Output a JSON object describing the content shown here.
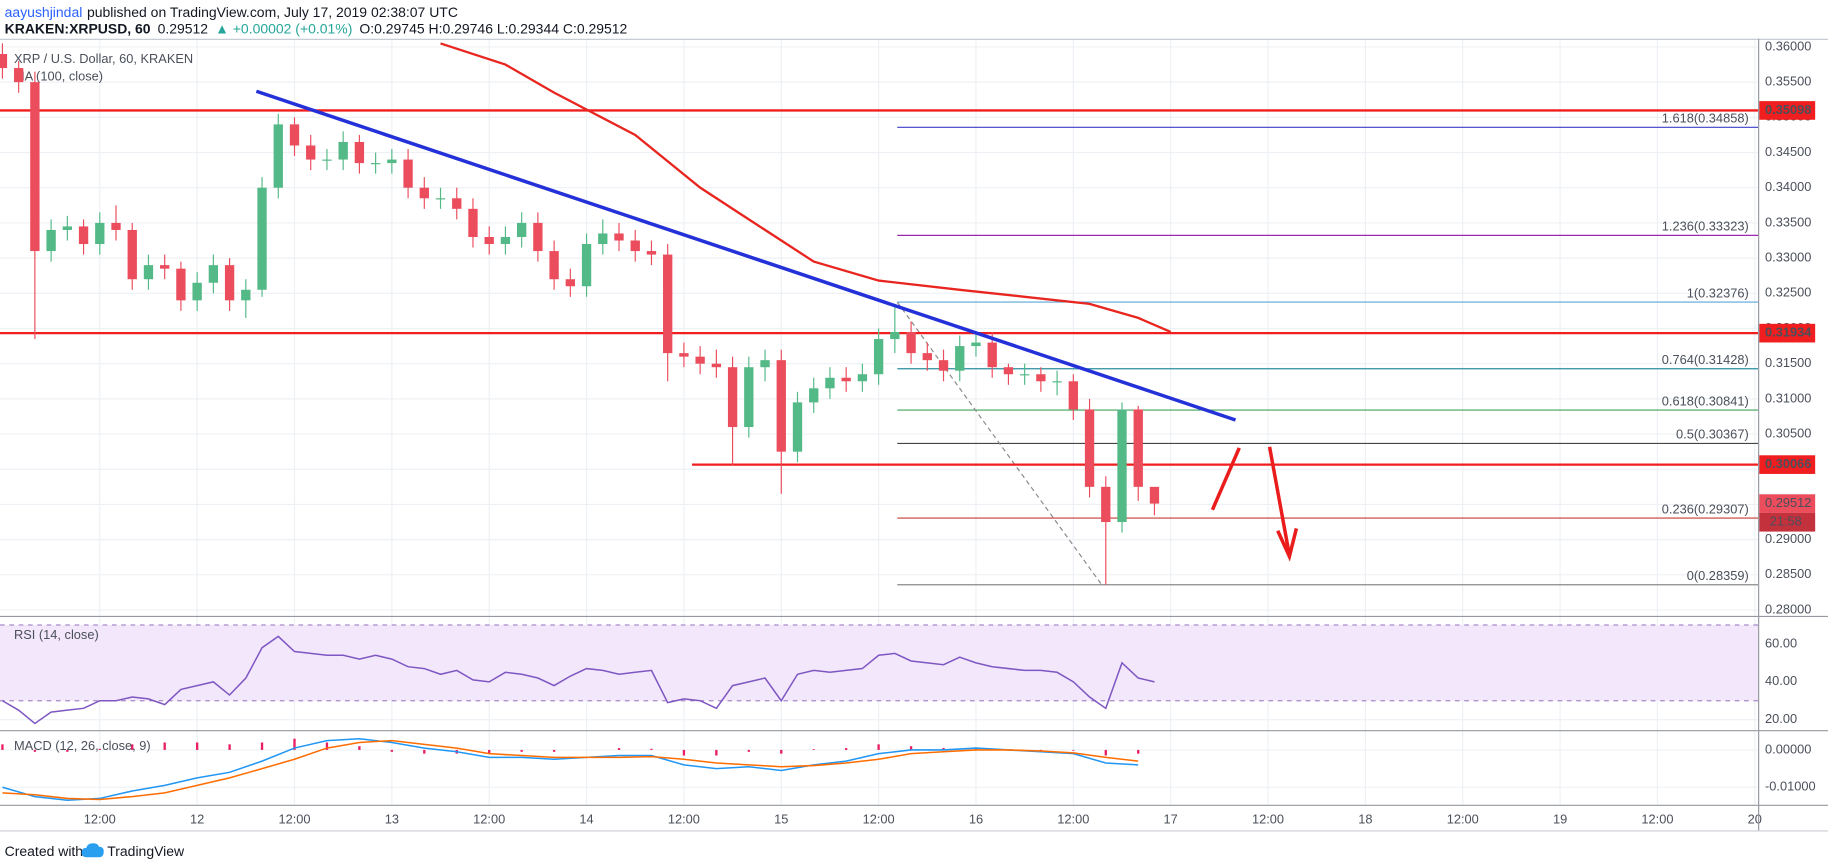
{
  "header": {
    "author": "aayushjindal",
    "published": "published on TradingView.com, July 17, 2019 02:38:07 UTC"
  },
  "symbol_bar": {
    "symbol": "KRAKEN:XRPUSD, 60",
    "last": "0.29512",
    "change": "▲ +0.00002 (+0.01%)",
    "ohlc": "O:0.29745 H:0.29746 L:0.29344 C:0.29512"
  },
  "chart_data": [
    {
      "type": "candlestick",
      "title": "XRP / U.S. Dollar, 60, KRAKEN",
      "x": [
        0,
        2,
        4,
        6,
        8,
        10,
        12,
        14,
        16,
        18,
        20,
        22,
        24,
        26,
        28,
        30,
        32,
        34,
        36,
        38,
        40,
        42,
        44,
        46,
        48,
        50,
        52,
        54,
        56,
        58,
        60,
        62,
        64,
        66,
        68,
        70,
        72,
        74,
        76,
        78,
        80,
        82,
        84,
        86,
        88,
        90,
        92,
        94,
        96,
        98,
        100,
        102,
        104,
        106,
        108,
        110,
        112,
        114,
        116,
        118,
        120,
        122,
        124,
        126,
        128,
        130,
        132,
        134,
        136,
        138,
        140,
        142
      ],
      "open": [
        0.359,
        0.357,
        0.355,
        0.331,
        0.334,
        0.3345,
        0.332,
        0.335,
        0.334,
        0.327,
        0.329,
        0.3285,
        0.324,
        0.3265,
        0.329,
        0.324,
        0.3255,
        0.34,
        0.349,
        0.346,
        0.344,
        0.344,
        0.3465,
        0.3435,
        0.3435,
        0.344,
        0.34,
        0.3385,
        0.3385,
        0.337,
        0.333,
        0.332,
        0.333,
        0.335,
        0.331,
        0.327,
        0.326,
        0.332,
        0.3335,
        0.3325,
        0.331,
        0.3305,
        0.3165,
        0.316,
        0.315,
        0.3145,
        0.306,
        0.3145,
        0.3155,
        0.3025,
        0.3095,
        0.3115,
        0.313,
        0.3125,
        0.3135,
        0.3185,
        0.3195,
        0.3165,
        0.3155,
        0.314,
        0.3175,
        0.318,
        0.3145,
        0.3135,
        0.3135,
        0.3125,
        0.3125,
        0.3085,
        0.2975,
        0.2925,
        0.3085,
        0.2975
      ],
      "high": [
        0.3605,
        0.358,
        0.3565,
        0.3355,
        0.336,
        0.3355,
        0.3365,
        0.3375,
        0.335,
        0.3305,
        0.3305,
        0.3295,
        0.328,
        0.3305,
        0.33,
        0.327,
        0.3415,
        0.3505,
        0.35,
        0.3475,
        0.3455,
        0.348,
        0.3475,
        0.345,
        0.3455,
        0.3455,
        0.3415,
        0.34,
        0.34,
        0.3385,
        0.3345,
        0.3345,
        0.3365,
        0.3365,
        0.3325,
        0.3285,
        0.3335,
        0.3355,
        0.335,
        0.334,
        0.3325,
        0.332,
        0.318,
        0.3175,
        0.317,
        0.316,
        0.316,
        0.317,
        0.317,
        0.311,
        0.313,
        0.3145,
        0.3145,
        0.315,
        0.32,
        0.3235,
        0.321,
        0.318,
        0.317,
        0.319,
        0.3195,
        0.3195,
        0.315,
        0.315,
        0.3145,
        0.314,
        0.3135,
        0.31,
        0.299,
        0.3095,
        0.309,
        0.29746
      ],
      "low": [
        0.3555,
        0.3535,
        0.3185,
        0.3295,
        0.3325,
        0.3305,
        0.3305,
        0.3325,
        0.3255,
        0.3255,
        0.327,
        0.3225,
        0.3225,
        0.325,
        0.3225,
        0.3215,
        0.3245,
        0.3385,
        0.3445,
        0.3425,
        0.3425,
        0.3425,
        0.342,
        0.342,
        0.342,
        0.3385,
        0.337,
        0.337,
        0.3355,
        0.3315,
        0.3305,
        0.3305,
        0.3315,
        0.3295,
        0.3255,
        0.3245,
        0.3245,
        0.3305,
        0.331,
        0.3295,
        0.329,
        0.3125,
        0.3145,
        0.3135,
        0.313,
        0.3005,
        0.3045,
        0.3125,
        0.2965,
        0.301,
        0.308,
        0.31,
        0.311,
        0.311,
        0.312,
        0.3165,
        0.315,
        0.314,
        0.3125,
        0.3125,
        0.316,
        0.313,
        0.312,
        0.312,
        0.311,
        0.3105,
        0.307,
        0.296,
        0.2836,
        0.291,
        0.2955,
        0.29344
      ],
      "close": [
        0.357,
        0.355,
        0.331,
        0.334,
        0.3345,
        0.332,
        0.335,
        0.334,
        0.327,
        0.329,
        0.3285,
        0.324,
        0.3265,
        0.329,
        0.324,
        0.3255,
        0.34,
        0.349,
        0.346,
        0.344,
        0.344,
        0.3465,
        0.3435,
        0.3435,
        0.344,
        0.34,
        0.3385,
        0.3385,
        0.337,
        0.333,
        0.332,
        0.333,
        0.335,
        0.331,
        0.327,
        0.326,
        0.332,
        0.3335,
        0.3325,
        0.331,
        0.3305,
        0.3165,
        0.316,
        0.315,
        0.3145,
        0.306,
        0.3145,
        0.3155,
        0.3025,
        0.3095,
        0.3115,
        0.313,
        0.3125,
        0.3135,
        0.3185,
        0.3195,
        0.3165,
        0.3155,
        0.314,
        0.3175,
        0.318,
        0.3145,
        0.3135,
        0.3135,
        0.3125,
        0.3125,
        0.3085,
        0.2975,
        0.2925,
        0.3085,
        0.2975,
        0.29512
      ],
      "up_color": "#53b987",
      "down_color": "#eb4d5c",
      "xlim": [
        -0.3,
        216.4
      ],
      "ylim": [
        0.27917,
        0.36116
      ],
      "yticks": [
        {
          "value": 0.28,
          "label": "0.28000"
        },
        {
          "value": 0.285,
          "label": "0.28500"
        },
        {
          "value": 0.29,
          "label": "0.29000"
        },
        {
          "value": 0.295,
          "label": "0.29500"
        },
        {
          "value": 0.3,
          "label": "0.30000"
        },
        {
          "value": 0.305,
          "label": "0.30500"
        },
        {
          "value": 0.31,
          "label": "0.31000"
        },
        {
          "value": 0.315,
          "label": "0.31500"
        },
        {
          "value": 0.32,
          "label": "0.32000"
        },
        {
          "value": 0.325,
          "label": "0.32500"
        },
        {
          "value": 0.33,
          "label": "0.33000"
        },
        {
          "value": 0.335,
          "label": "0.33500"
        },
        {
          "value": 0.34,
          "label": "0.34000"
        },
        {
          "value": 0.345,
          "label": "0.34500"
        },
        {
          "value": 0.35,
          "label": "0.35000"
        },
        {
          "value": 0.355,
          "label": "0.35500"
        },
        {
          "value": 0.36,
          "label": "0.36000"
        }
      ],
      "grid": true,
      "overlays": [
        {
          "name": "MA (100, close)",
          "color": "#e8261f",
          "x": [
            54,
            62,
            68,
            78,
            86,
            92,
            100,
            108,
            118,
            126,
            134,
            140,
            144
          ],
          "values": [
            0.3605,
            0.3575,
            0.3535,
            0.3475,
            0.34,
            0.3355,
            0.3295,
            0.3268,
            0.3255,
            0.3245,
            0.3235,
            0.3215,
            0.3195
          ]
        },
        {
          "color": "#2431d8",
          "x": [
            31.3,
            152
          ],
          "values": [
            0.3537,
            0.307
          ]
        }
      ],
      "levels": [
        {
          "value": 0.35098
        },
        {
          "value": 0.31934
        },
        {
          "value": 0.30066,
          "x_start": 85
        }
      ],
      "level_color": "#f01e1e",
      "fib": {
        "x_start": 110.3,
        "x_end": 135.5,
        "levels": [
          {
            "ratio": 1.618,
            "value": 0.34858,
            "label": "1.618(0.34858)",
            "color": "#3b3fc8"
          },
          {
            "ratio": 1.236,
            "value": 0.33323,
            "label": "1.236(0.33323)",
            "color": "#9c27b0"
          },
          {
            "ratio": 1,
            "value": 0.32376,
            "label": "1(0.32376)",
            "color": "#5aa7d8"
          },
          {
            "ratio": 0.764,
            "value": 0.31428,
            "label": "0.764(0.31428)",
            "color": "#2a8e9e"
          },
          {
            "ratio": 0.618,
            "value": 0.30841,
            "label": "0.618(0.30841)",
            "color": "#3fa35a"
          },
          {
            "ratio": 0.5,
            "value": 0.30367,
            "label": "0.5(0.30367)",
            "color": "#444444"
          },
          {
            "ratio": 0.236,
            "value": 0.29307,
            "label": "0.236(0.29307)",
            "color": "#c63a35"
          },
          {
            "ratio": 0,
            "value": 0.28359,
            "label": "0(0.28359)",
            "color": "#8a8a8a"
          }
        ]
      },
      "last_price": 0.29512,
      "countdown": "21:58"
    },
    {
      "type": "line",
      "title": "RSI (14, close)",
      "x": [
        0,
        2,
        4,
        6,
        8,
        10,
        12,
        14,
        16,
        18,
        20,
        22,
        24,
        26,
        28,
        30,
        32,
        34,
        36,
        38,
        40,
        42,
        44,
        46,
        48,
        50,
        52,
        54,
        56,
        58,
        60,
        62,
        64,
        66,
        68,
        70,
        72,
        74,
        76,
        78,
        80,
        82,
        84,
        86,
        88,
        90,
        92,
        94,
        96,
        98,
        100,
        102,
        104,
        106,
        108,
        110,
        112,
        114,
        116,
        118,
        120,
        122,
        124,
        126,
        128,
        130,
        132,
        134,
        136,
        138,
        140,
        142
      ],
      "values": [
        30,
        25,
        18,
        24,
        25,
        26,
        30,
        30,
        32,
        31,
        28,
        36,
        38,
        40,
        33,
        42,
        58,
        64,
        56,
        55,
        54,
        54,
        52,
        54,
        52,
        48,
        47,
        44,
        46,
        41,
        40,
        45,
        44,
        42,
        38,
        43,
        47,
        46,
        44,
        45,
        46,
        29,
        31,
        30,
        26,
        38,
        40,
        42,
        30,
        44,
        46,
        45,
        46,
        47,
        54,
        55,
        51,
        50,
        49,
        53,
        50,
        48,
        47,
        46,
        46,
        45,
        40,
        32,
        26,
        50,
        42,
        40
      ],
      "color": "#7e57c2",
      "band": [
        30,
        70
      ],
      "band_color": "#f3e8fb",
      "xlim": [
        -0.3,
        216.4
      ],
      "ylim": [
        14.5,
        74.2
      ],
      "yticks": [
        {
          "value": 20,
          "label": "20.00"
        },
        {
          "value": 40,
          "label": "40.00"
        },
        {
          "value": 60,
          "label": "60.00"
        }
      ]
    },
    {
      "type": "macd",
      "title": "MACD (12, 26, close, 9)",
      "x": [
        0,
        4,
        8,
        12,
        16,
        20,
        24,
        28,
        32,
        36,
        40,
        44,
        48,
        52,
        56,
        60,
        64,
        68,
        72,
        76,
        80,
        84,
        88,
        92,
        96,
        100,
        104,
        108,
        112,
        116,
        120,
        124,
        128,
        132,
        136,
        140
      ],
      "series": [
        {
          "color": "#2196f3",
          "values": [
            -0.01,
            -0.0125,
            -0.0135,
            -0.013,
            -0.011,
            -0.0095,
            -0.0075,
            -0.006,
            -0.003,
            0.0005,
            0.0025,
            0.003,
            0.002,
            0.0005,
            -0.0005,
            -0.002,
            -0.002,
            -0.0025,
            -0.002,
            -0.0015,
            -0.0015,
            -0.004,
            -0.005,
            -0.0045,
            -0.0055,
            -0.004,
            -0.003,
            -0.001,
            0,
            0,
            0.0005,
            0,
            -0.0005,
            -0.001,
            -0.0035,
            -0.004
          ]
        },
        {
          "color": "#ff6d00",
          "values": [
            -0.0115,
            -0.012,
            -0.013,
            -0.0133,
            -0.0125,
            -0.0115,
            -0.0095,
            -0.0075,
            -0.005,
            -0.0025,
            0.0005,
            0.002,
            0.0025,
            0.0015,
            0.0005,
            -0.001,
            -0.0015,
            -0.002,
            -0.002,
            -0.002,
            -0.0018,
            -0.0025,
            -0.0035,
            -0.004,
            -0.0045,
            -0.0042,
            -0.0035,
            -0.0025,
            -0.001,
            -0.0005,
            0,
            0,
            -0.0003,
            -0.0008,
            -0.002,
            -0.003
          ]
        }
      ],
      "histogram": {
        "color": "#e91e63",
        "values": [
          0.0015,
          -0.0005,
          -0.0005,
          0.0003,
          0.0015,
          0.002,
          0.002,
          0.0015,
          0.002,
          0.003,
          0.002,
          0.001,
          -0.0005,
          -0.001,
          -0.001,
          -0.001,
          -0.0005,
          -0.0005,
          0,
          0.0005,
          0.0003,
          -0.0015,
          -0.0015,
          -0.0005,
          -0.001,
          0.0002,
          0.0005,
          0.0015,
          0.001,
          0.0005,
          0.0005,
          0,
          -0.0002,
          -0.0002,
          -0.0015,
          -0.001
        ]
      },
      "xlim": [
        -0.3,
        216.4
      ],
      "ylim": [
        -0.0147,
        0.005
      ],
      "yticks": [
        {
          "value": -0.01,
          "label": "-0.01000"
        },
        {
          "value": 0,
          "label": "0.00000"
        }
      ],
      "xticks": [
        {
          "value": 12,
          "label": "12:00"
        },
        {
          "value": 24,
          "label": "12"
        },
        {
          "value": 36,
          "label": "12:00"
        },
        {
          "value": 48,
          "label": "13"
        },
        {
          "value": 60,
          "label": "12:00"
        },
        {
          "value": 72,
          "label": "14"
        },
        {
          "value": 84,
          "label": "12:00"
        },
        {
          "value": 96,
          "label": "15"
        },
        {
          "value": 108,
          "label": "12:00"
        },
        {
          "value": 120,
          "label": "16"
        },
        {
          "value": 132,
          "label": "12:00"
        },
        {
          "value": 144,
          "label": "17"
        },
        {
          "value": 156,
          "label": "12:00"
        },
        {
          "value": 168,
          "label": "18"
        },
        {
          "value": 180,
          "label": "12:00"
        },
        {
          "value": 192,
          "label": "19"
        },
        {
          "value": 204,
          "label": "12:00"
        },
        {
          "value": 216,
          "label": "20"
        }
      ]
    }
  ],
  "footer": {
    "created": "Created with",
    "brand": "TradingView"
  }
}
